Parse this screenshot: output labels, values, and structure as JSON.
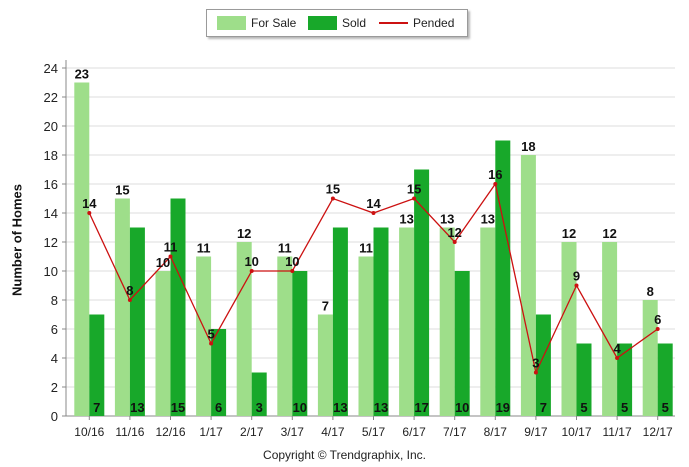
{
  "legend": {
    "for_sale": "For Sale",
    "sold": "Sold",
    "pended": "Pended"
  },
  "copyright": "Copyright © Trendgraphix, Inc.",
  "chart_data": {
    "type": "bar",
    "ylabel": "Number of Homes",
    "xlabel": "",
    "ylim": [
      0,
      24
    ],
    "yticks": [
      0,
      2,
      4,
      6,
      8,
      10,
      12,
      14,
      16,
      18,
      20,
      22,
      24
    ],
    "grid": true,
    "legend_position": "top-center",
    "categories": [
      "10/16",
      "11/16",
      "12/16",
      "1/17",
      "2/17",
      "3/17",
      "4/17",
      "5/17",
      "6/17",
      "7/17",
      "8/17",
      "9/17",
      "10/17",
      "11/17",
      "12/17"
    ],
    "series": [
      {
        "name": "For Sale",
        "kind": "bar",
        "color": "#9ede8a",
        "values": [
          23,
          15,
          10,
          11,
          12,
          11,
          7,
          11,
          13,
          13,
          13,
          18,
          12,
          12,
          8
        ]
      },
      {
        "name": "Sold",
        "kind": "bar",
        "color": "#18a82a",
        "values": [
          7,
          13,
          15,
          6,
          3,
          10,
          13,
          13,
          17,
          10,
          19,
          7,
          5,
          5,
          5
        ]
      },
      {
        "name": "Pended",
        "kind": "line",
        "color": "#cc1111",
        "values": [
          14,
          8,
          11,
          5,
          10,
          10,
          15,
          14,
          15,
          12,
          16,
          3,
          9,
          4,
          6
        ]
      }
    ]
  }
}
